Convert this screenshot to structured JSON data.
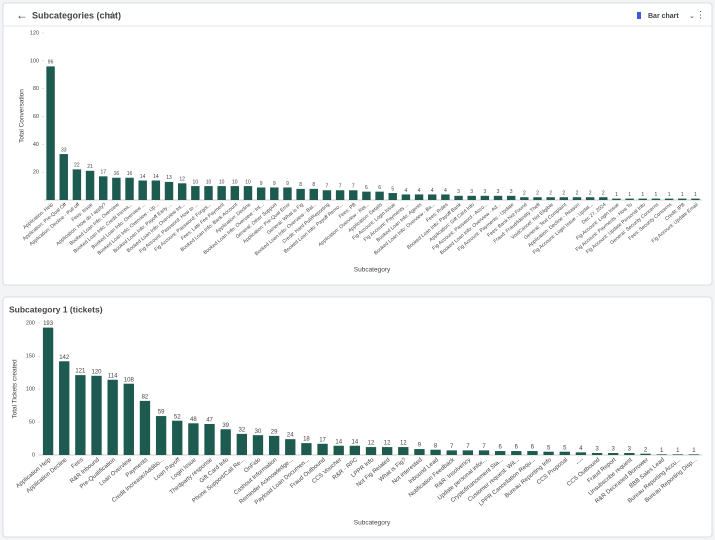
{
  "toolbar": {
    "view": "Bar chart"
  },
  "chart_data": [
    {
      "type": "bar",
      "title": "Subcategories (chat)",
      "y_label": "Total Conversation",
      "x_label": "Subcategory",
      "color": "#1d5a50",
      "ylim": [
        0,
        120
      ],
      "yticks": [
        20,
        40,
        60,
        80,
        100,
        120
      ],
      "categories": [
        "Application: Help",
        "Application: Pre-Qual Off",
        "Application: Decline - Pull off",
        "Fees: Issue",
        "Application: How do I apply?",
        "Booked Loan Info: Overview",
        "Booked Loan Info: Credit Increa...",
        "Booked Loan Info: Overview ...",
        "Booked Loan Info: Overview - Up...",
        "Booked Loan Info: Payoff Early ...",
        "Booked Loan Info: Overview Int...",
        "Fig Account: Password: How to ...",
        "Fig Account: Password: Forgot...",
        "Fees: Late Fee Payment",
        "Booked Loan Info: Bank Account",
        "Application: Decline",
        "Booked Loan Info: Overview - Int...",
        "General: Other Support",
        "Application: Pre-Qual Error",
        "General: What is Fig",
        "Booked Loan Info: Overview - Bal...",
        "Credit: Hard Pull/Reporting",
        "Booked Loan Info: Payoff Remo...",
        "Fees: PB",
        "Application: Overview - Ret...",
        "Application: Details",
        "Fig Account: Login Issue",
        "Fig Account: Payments ...",
        "Booked Loan Info: Agents",
        "Booked Loan Info: Overview - Ba...",
        "Fees: Rules",
        "Booked Loan Info: Payoff Bank",
        "Application: Gift Card Info",
        "Fig Account: Password - Acco...",
        "Booked Loan Info: Overview - Ad...",
        "Fig Account: Payments - Update",
        "Fees: Bank Not Found",
        "Fraud: Fraud/Identity Theft",
        "VoidCancel: Not Eligible",
        "General: Text Complaint",
        "Application: Decline - Reason",
        "Fig Account: Login Issue - Updat...",
        "Dec 27, 2024",
        "Fig Account: Login Issue",
        "Fig Account: Payments - How To",
        "Fig Account: Update Personal Info",
        "General: Security Concerns",
        "Fees: Security Concerns",
        "Credit: IPB",
        "Fig Account: Update Email"
      ],
      "values": [
        96,
        33,
        22,
        21,
        17,
        16,
        16,
        14,
        14,
        13,
        12,
        10,
        10,
        10,
        10,
        10,
        9,
        9,
        9,
        8,
        8,
        7,
        7,
        7,
        6,
        6,
        5,
        4,
        4,
        4,
        4,
        3,
        3,
        3,
        3,
        3,
        2,
        2,
        2,
        2,
        2,
        2,
        2,
        1,
        1,
        1,
        1,
        1,
        1,
        1
      ]
    },
    {
      "type": "bar",
      "title": "Subcategory 1 (tickets)",
      "y_label": "Total Tickets created",
      "x_label": "Subcategory",
      "color": "#1d5a50",
      "ylim": [
        0,
        200
      ],
      "yticks": [
        0,
        50,
        100,
        150,
        200
      ],
      "categories": [
        "Application Help",
        "Application Decline",
        "Fees",
        "R&R Inbound",
        "Pre-Qualification",
        "Loan Overview",
        "Payments",
        "Credit Increase/Additio...",
        "Loan Payoff",
        "Login Issue",
        "Thirdparty response",
        "Gift Card Info",
        "Phone Support/Call Re...",
        "OnFido",
        "Cashout Information",
        "Reminder Acknowledge...",
        "Payload Loan Documen...",
        "Fraud Outbound",
        "CCS Voucher",
        "R&R - RPC",
        "LPPR Info",
        "Not Fig Related",
        "What is Fig?",
        "Not interested",
        "Inbound Lead",
        "Notification Feedback",
        "R&R: Insolvency",
        "Update personal infor...",
        "Cryptofinancement Sta...",
        "Customer request: Wit...",
        "LPPR Cancellation Requ...",
        "Bureau Reporting Info",
        "CCS Proposal",
        "----",
        "CCS Outbound",
        "Fraud Report",
        "Unsubscribe request",
        "R&R Deceased Borrower",
        "BBB Sales Lead",
        "Bureau Reporting Accu...",
        "Bureau Reporting Disp..."
      ],
      "values": [
        193,
        142,
        121,
        120,
        114,
        108,
        82,
        59,
        52,
        48,
        47,
        39,
        32,
        30,
        29,
        24,
        18,
        17,
        14,
        14,
        12,
        12,
        12,
        9,
        8,
        7,
        7,
        7,
        6,
        6,
        6,
        5,
        5,
        4,
        3,
        3,
        3,
        2,
        1,
        1,
        1
      ]
    }
  ]
}
